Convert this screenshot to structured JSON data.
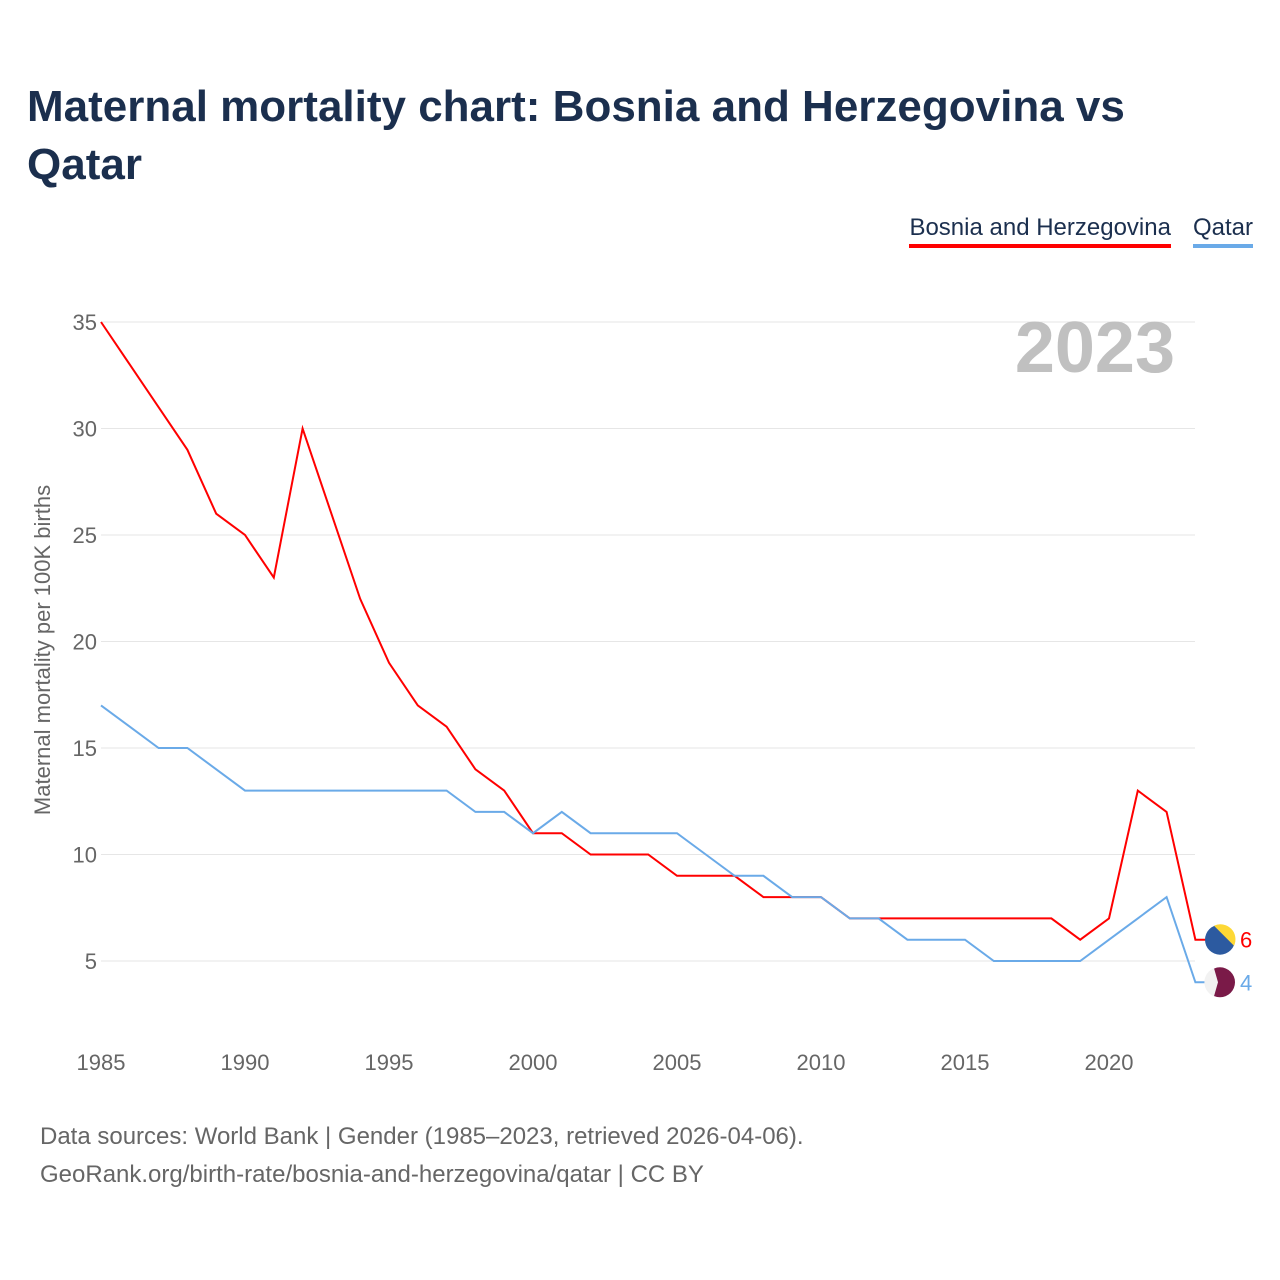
{
  "title": "Maternal mortality chart: Bosnia and Herzegovina vs Qatar",
  "footer": {
    "line1": "Data sources: World Bank | Gender (1985–2023, retrieved 2026-04-06).",
    "line2": "GeoRank.org/birth-rate/bosnia-and-herzegovina/qatar | CC BY"
  },
  "chart_data": {
    "type": "line",
    "title": "Maternal mortality chart: Bosnia and Herzegovina vs Qatar",
    "ylabel": "Maternal mortality per 100K births",
    "xlabel": "",
    "year_label": "2023",
    "xlim": [
      1985,
      2023
    ],
    "ylim": [
      2,
      35
    ],
    "xticks": [
      1985,
      1990,
      1995,
      2000,
      2005,
      2010,
      2015,
      2020
    ],
    "yticks": [
      5,
      10,
      15,
      20,
      25,
      30,
      35
    ],
    "grid": true,
    "legend": "top-right",
    "x": [
      1985,
      1986,
      1987,
      1988,
      1989,
      1990,
      1991,
      1992,
      1993,
      1994,
      1995,
      1996,
      1997,
      1998,
      1999,
      2000,
      2001,
      2002,
      2003,
      2004,
      2005,
      2006,
      2007,
      2008,
      2009,
      2010,
      2011,
      2012,
      2013,
      2014,
      2015,
      2016,
      2017,
      2018,
      2019,
      2020,
      2021,
      2022,
      2023
    ],
    "series": [
      {
        "name": "Bosnia and Herzegovina",
        "color": "#ff0000",
        "end_label": "6",
        "values": [
          35,
          33,
          31,
          29,
          26,
          25,
          23,
          30,
          26,
          22,
          19,
          17,
          16,
          14,
          13,
          11,
          11,
          10,
          10,
          10,
          9,
          9,
          9,
          8,
          8,
          8,
          7,
          7,
          7,
          7,
          7,
          7,
          7,
          7,
          6,
          7,
          13,
          12,
          6
        ]
      },
      {
        "name": "Qatar",
        "color": "#6aaae8",
        "end_label": "4",
        "values": [
          17,
          16,
          15,
          15,
          14,
          13,
          13,
          13,
          13,
          13,
          13,
          13,
          13,
          12,
          12,
          11,
          12,
          11,
          11,
          11,
          11,
          10,
          9,
          9,
          8,
          8,
          7,
          7,
          6,
          6,
          6,
          5,
          5,
          5,
          5,
          6,
          7,
          8,
          4
        ]
      }
    ]
  }
}
